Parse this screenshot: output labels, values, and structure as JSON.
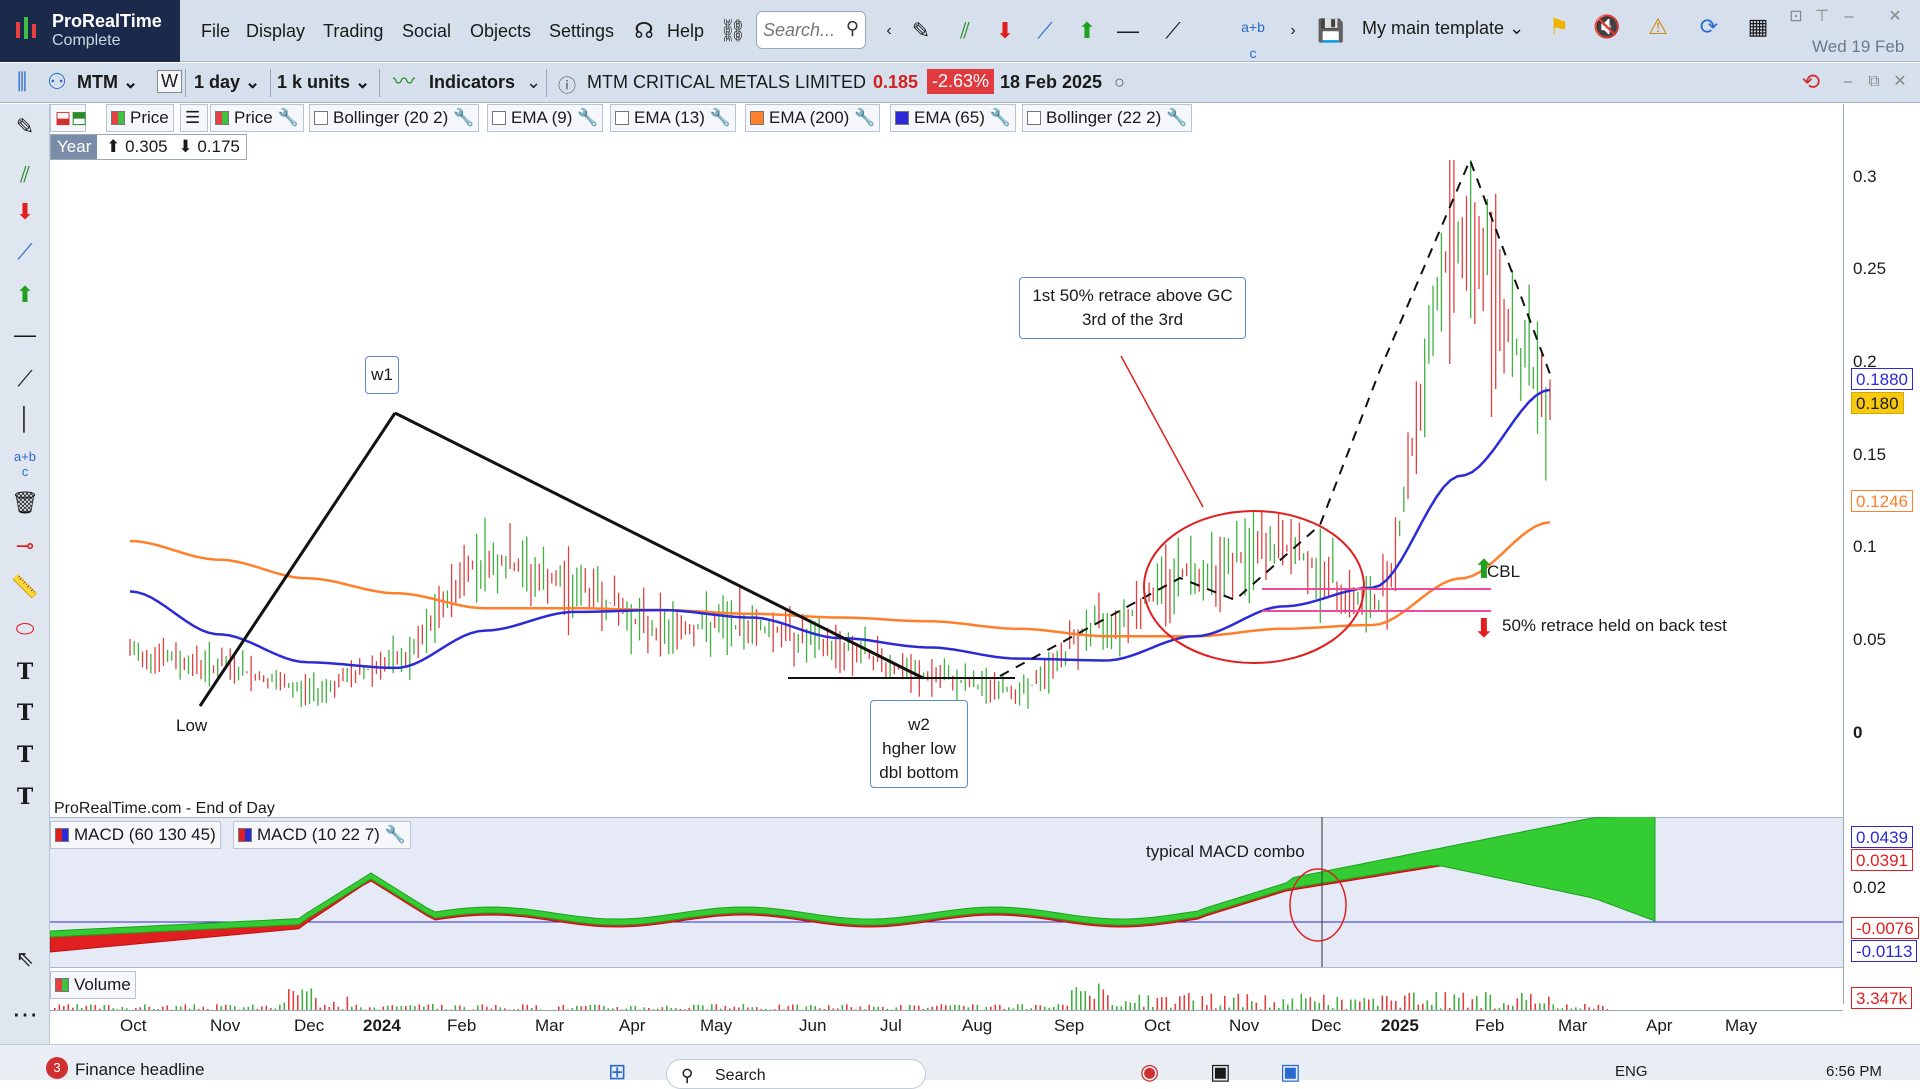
{
  "app": {
    "name": "ProRealTime",
    "edition": "Complete"
  },
  "menu": [
    "File",
    "Display",
    "Trading",
    "Social",
    "Objects",
    "Settings",
    "Help"
  ],
  "search": {
    "placeholder": "Search..."
  },
  "template": {
    "label": "My main template"
  },
  "datetime": "Wed 19 Feb",
  "instrument": {
    "ticker": "MTM",
    "period_flag": "W",
    "timeframe": "1 day",
    "units": "1 k units",
    "indicators_label": "Indicators",
    "name": "MTM CRITICAL METALS LIMITED",
    "price": "0.185",
    "change": "-2.63%",
    "date": "18 Feb 2025"
  },
  "legend": {
    "price1": "Price",
    "price2": "Price",
    "items": [
      "Bollinger (20 2)",
      "EMA (9)",
      "EMA (13)",
      "EMA (200)",
      "EMA (65)",
      "Bollinger (22 2)"
    ]
  },
  "year_box": {
    "label": "Year",
    "high": "0.305",
    "low": "0.175"
  },
  "price_axis": {
    "ticks": [
      "0.3",
      "0.25",
      "0.2",
      "0.15",
      "0.1",
      "0.05",
      "0"
    ],
    "badges": {
      "ema65": "0.1880",
      "last": "0.180",
      "ema200": "0.1246"
    }
  },
  "macd_axis": {
    "ticks": [
      "0.02"
    ],
    "badges": {
      "a": "0.0439",
      "b": "0.0391",
      "c": "-0.0076",
      "d": "-0.0113"
    }
  },
  "volume": {
    "label": "Volume",
    "value": "3.347k"
  },
  "macd": {
    "legend": [
      "MACD (60 130 45)",
      "MACD (10 22 7)"
    ]
  },
  "source_label": "ProRealTime.com - End of Day",
  "annotations": {
    "w1": "w1",
    "low": "Low",
    "w2": [
      "w2",
      "hgher low",
      "dbl bottom"
    ],
    "retrace_note": [
      "1st 50% retrace above GC",
      "3rd of the 3rd"
    ],
    "cbl": "CBL",
    "retrace_held": "50% retrace held on back test",
    "macd_combo": "typical MACD combo"
  },
  "time_axis": [
    "Oct",
    "Nov",
    "Dec",
    "2024",
    "Feb",
    "Mar",
    "Apr",
    "May",
    "Jun",
    "Jul",
    "Aug",
    "Sep",
    "Oct",
    "Nov",
    "Dec",
    "2025",
    "Feb",
    "Mar",
    "Apr",
    "May"
  ],
  "taskbar": {
    "news": "Finance headline",
    "badge": "3",
    "search": "Search",
    "lang": "ENG",
    "time": "6:56 PM"
  },
  "colors": {
    "ema200": "#ff7f2a",
    "ema65": "#2b2bd6",
    "macd_fill": "#33cc33",
    "macd_neg": "#e02020",
    "accent": "#1b2a4a",
    "change_bg": "#e0393e"
  },
  "chart_data": {
    "type": "line",
    "xlabel": "",
    "ylabel": "",
    "x": [
      "Oct",
      "Nov",
      "Dec",
      "2024",
      "Feb",
      "Mar",
      "Apr",
      "May",
      "Jun",
      "Jul",
      "Aug",
      "Sep",
      "Oct",
      "Nov",
      "Dec",
      "2025",
      "Feb"
    ],
    "ylim": [
      0,
      0.3
    ],
    "series": [
      {
        "name": "EMA (200)",
        "values": [
          0.105,
          0.095,
          0.085,
          0.077,
          0.069,
          0.069,
          0.068,
          0.066,
          0.064,
          0.062,
          0.058,
          0.054,
          0.054,
          0.058,
          0.06,
          0.085,
          0.115
        ]
      },
      {
        "name": "EMA (65)",
        "values": [
          0.078,
          0.055,
          0.04,
          0.037,
          0.057,
          0.067,
          0.068,
          0.064,
          0.053,
          0.048,
          0.042,
          0.041,
          0.054,
          0.07,
          0.08,
          0.14,
          0.186
        ]
      },
      {
        "name": "Price",
        "values": [
          0.045,
          0.038,
          0.025,
          0.04,
          0.095,
          0.08,
          0.058,
          0.06,
          0.048,
          0.032,
          0.025,
          0.062,
          0.09,
          0.1,
          0.07,
          0.27,
          0.185
        ]
      }
    ]
  }
}
